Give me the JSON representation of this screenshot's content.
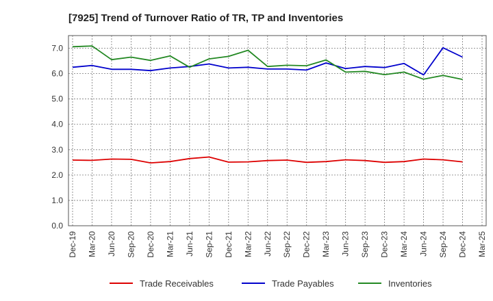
{
  "chart_data": {
    "type": "line",
    "title": "[7925]  Trend of Turnover Ratio of TR, TP and Inventories",
    "xlabel": "",
    "ylabel": "",
    "ylim": [
      0,
      7.5
    ],
    "yticks": [
      "0.0",
      "1.0",
      "2.0",
      "3.0",
      "4.0",
      "5.0",
      "6.0",
      "7.0"
    ],
    "ytick_values": [
      0,
      1,
      2,
      3,
      4,
      5,
      6,
      7
    ],
    "categories": [
      "Dec-19",
      "Mar-20",
      "Jun-20",
      "Sep-20",
      "Dec-20",
      "Mar-21",
      "Jun-21",
      "Sep-21",
      "Dec-21",
      "Mar-22",
      "Jun-22",
      "Sep-22",
      "Dec-22",
      "Mar-23",
      "Jun-23",
      "Sep-23",
      "Dec-23",
      "Mar-24",
      "Jun-24",
      "Sep-24",
      "Dec-24",
      "Mar-25"
    ],
    "grid": true,
    "legend_position": "bottom",
    "series": [
      {
        "name": "Trade Receivables",
        "color": "#dd0000",
        "values": [
          2.59,
          2.58,
          2.63,
          2.62,
          2.48,
          2.53,
          2.65,
          2.71,
          2.51,
          2.52,
          2.57,
          2.59,
          2.5,
          2.53,
          2.6,
          2.57,
          2.5,
          2.53,
          2.63,
          2.6,
          2.52,
          null
        ]
      },
      {
        "name": "Trade Payables",
        "color": "#0000cc",
        "values": [
          6.25,
          6.32,
          6.17,
          6.17,
          6.12,
          6.22,
          6.28,
          6.38,
          6.22,
          6.25,
          6.18,
          6.18,
          6.14,
          6.42,
          6.2,
          6.28,
          6.24,
          6.4,
          5.95,
          7.02,
          6.65,
          null
        ]
      },
      {
        "name": "Inventories",
        "color": "#228822",
        "values": [
          7.06,
          7.09,
          6.55,
          6.65,
          6.52,
          6.7,
          6.25,
          6.58,
          6.68,
          6.92,
          6.28,
          6.33,
          6.31,
          6.54,
          6.06,
          6.09,
          5.96,
          6.06,
          5.78,
          5.93,
          5.77,
          null
        ]
      }
    ]
  }
}
